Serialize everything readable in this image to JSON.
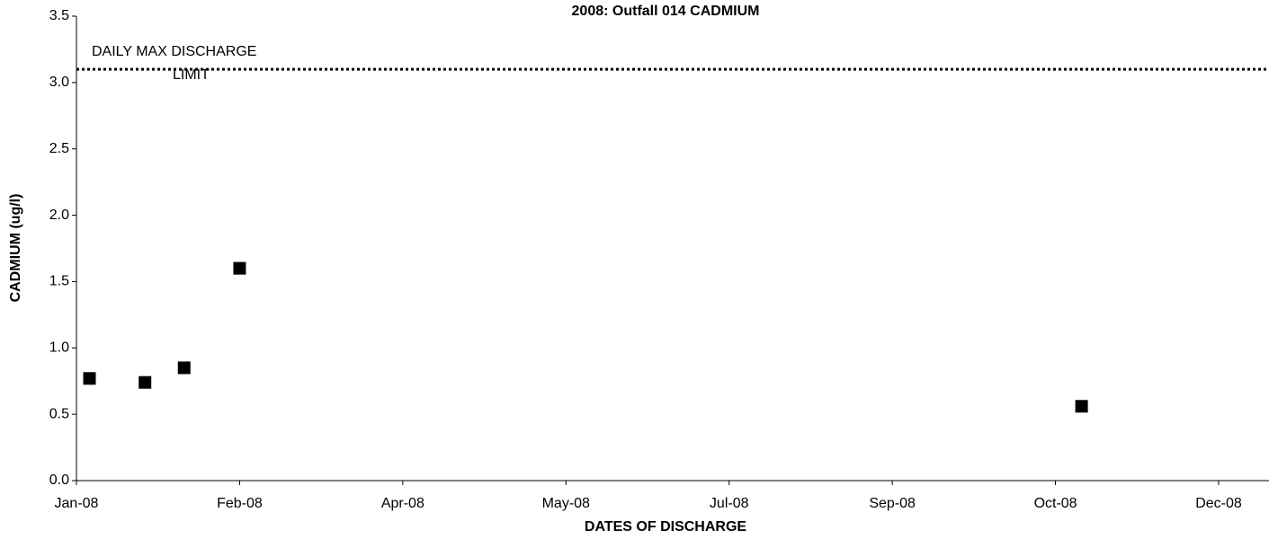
{
  "chart_data": {
    "type": "scatter",
    "title": "2008: Outfall 014 CADMIUM",
    "xlabel": "DATES OF DISCHARGE",
    "ylabel": "CADMIUM (ug/l)",
    "x": [
      39452,
      39469,
      39481,
      39498,
      39756
    ],
    "values": [
      0.77,
      0.74,
      0.85,
      1.6,
      0.56
    ],
    "color": "#000000",
    "xlim": [
      39448,
      39798
    ],
    "xticks": [
      {
        "value": 39448,
        "label": "Jan-08"
      },
      {
        "value": 39498,
        "label": "Feb-08"
      },
      {
        "value": 39548,
        "label": "Apr-08"
      },
      {
        "value": 39598,
        "label": "May-08"
      },
      {
        "value": 39648,
        "label": "Jul-08"
      },
      {
        "value": 39698,
        "label": "Sep-08"
      },
      {
        "value": 39748,
        "label": "Oct-08"
      },
      {
        "value": 39798,
        "label": "Dec-08"
      }
    ],
    "ylim": [
      0,
      3.5
    ],
    "yticks": [
      {
        "value": 0,
        "label": "0.0"
      },
      {
        "value": 0.5,
        "label": "0.5"
      },
      {
        "value": 1,
        "label": "1.0"
      },
      {
        "value": 1.5,
        "label": "1.5"
      },
      {
        "value": 2,
        "label": "2.0"
      },
      {
        "value": 2.5,
        "label": "2.5"
      },
      {
        "value": 3,
        "label": "3.0"
      },
      {
        "value": 3.5,
        "label": "3.5"
      }
    ],
    "limit_line": 3.1,
    "annotation": [
      "DAILY MAX DISCHARGE",
      "LIMIT"
    ],
    "grid": false
  }
}
